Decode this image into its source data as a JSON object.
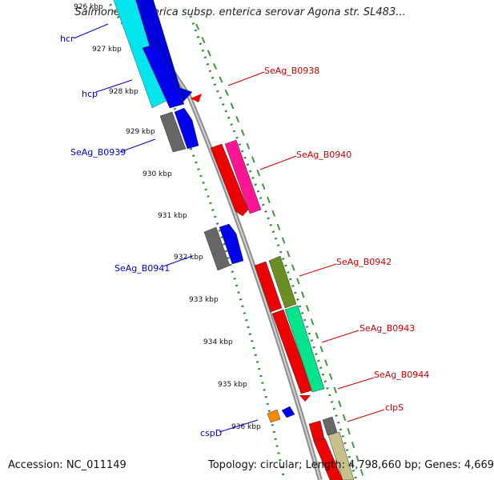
{
  "title": "Salmonella enterica subsp. enterica serovar Agona str. SL483...",
  "footer": {
    "accession": "Accession: NC_011149",
    "topology": "Topology: circular; Length: 4,798,660 bp; Genes: 4,669"
  },
  "ticks": [
    "926 kbp",
    "927 kbp",
    "928 kbp",
    "929 kbp",
    "930 kbp",
    "931 kbp",
    "932 kbp",
    "933 kbp",
    "934 kbp",
    "935 kbp",
    "936 kbp"
  ],
  "labels_left": [
    "hcr",
    "hcp",
    "SeAg_B0939",
    "SeAg_B0941",
    "cspD"
  ],
  "labels_right": [
    "SeAg_B0938",
    "SeAg_B0940",
    "SeAg_B0942",
    "SeAg_B0943",
    "SeAg_B0944",
    "clpS"
  ],
  "colors": {
    "left_label": "#0000cc",
    "right_label": "#cc0000",
    "tick_green": "#2e8b2e",
    "backbone": "#9a9a9a"
  }
}
